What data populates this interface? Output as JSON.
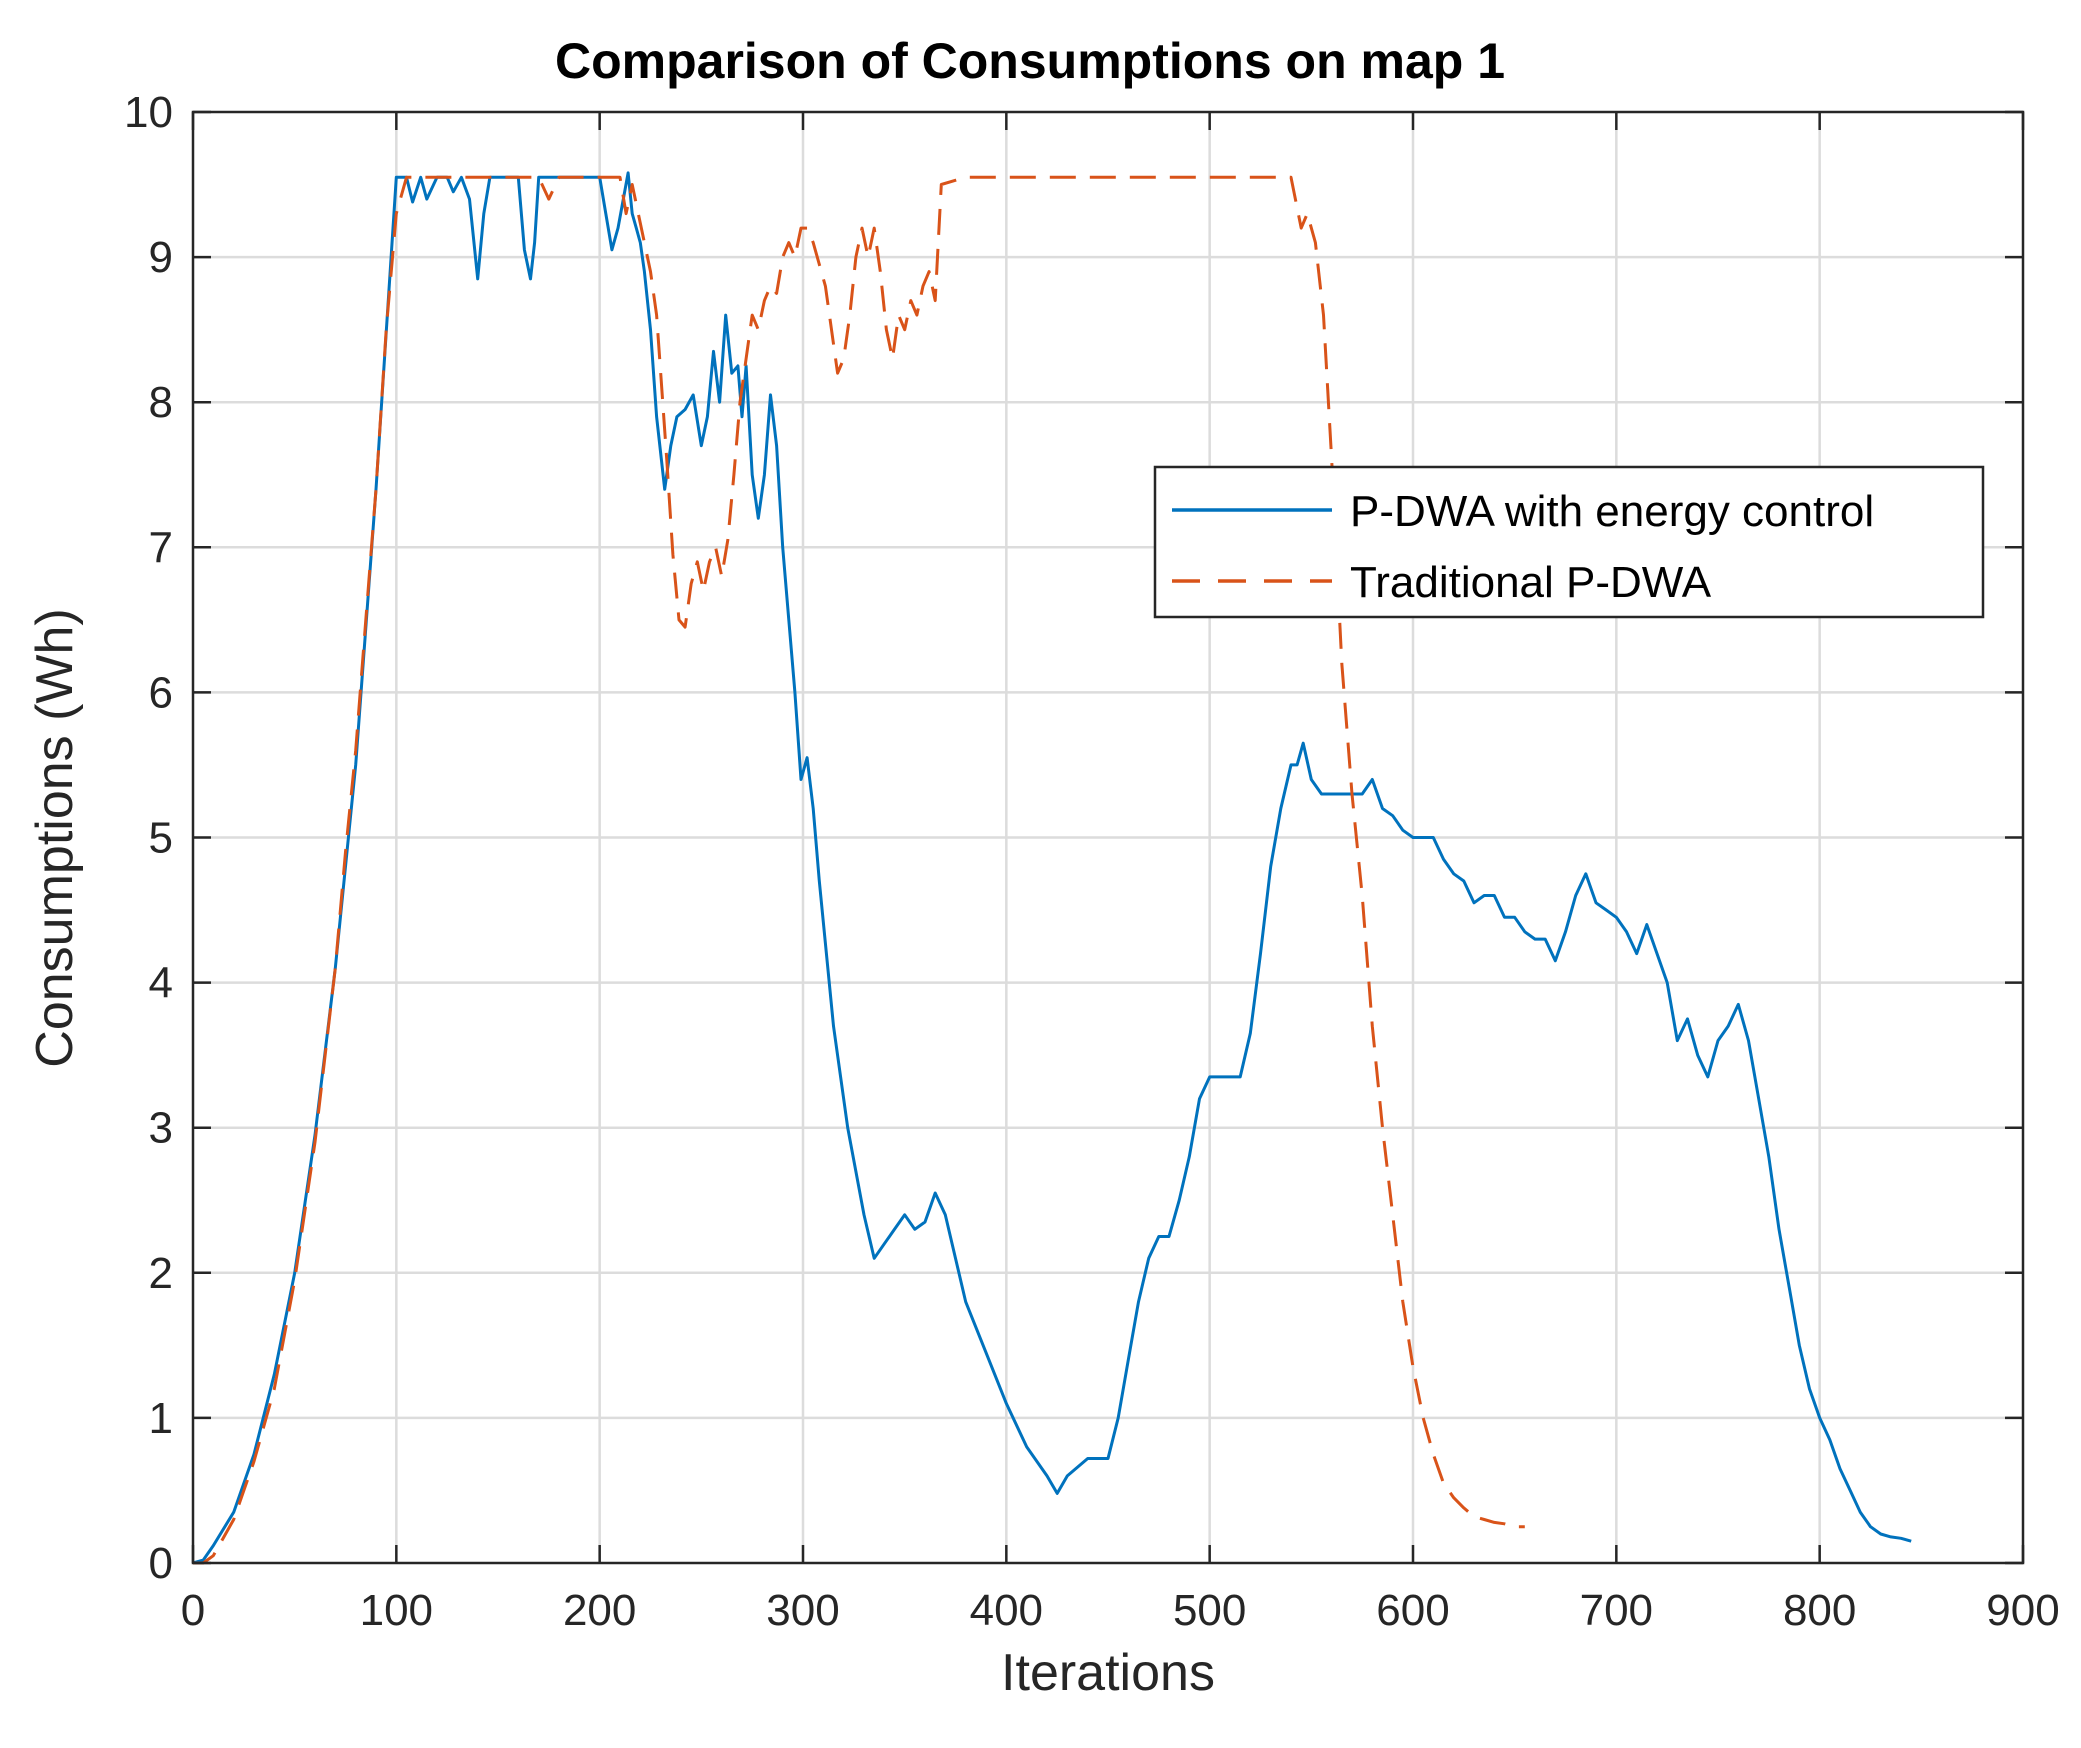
{
  "chart_data": {
    "type": "line",
    "title": "Comparison of Consumptions on map 1",
    "xlabel": "Iterations",
    "ylabel": "Consumptions (Wh)",
    "xlim": [
      0,
      900
    ],
    "ylim": [
      0,
      10
    ],
    "xticks": [
      "0",
      "100",
      "200",
      "300",
      "400",
      "500",
      "600",
      "700",
      "800",
      "900"
    ],
    "yticks": [
      "0",
      "1",
      "2",
      "3",
      "4",
      "5",
      "6",
      "7",
      "8",
      "9",
      "10"
    ],
    "grid": true,
    "legend_position": "center-right",
    "colors": {
      "series1": "#0072BD",
      "series2": "#D95319",
      "axis": "#262626",
      "grid": "#dcdcdc"
    },
    "series": [
      {
        "name": "P-DWA with energy control",
        "style": "solid",
        "x": [
          0,
          5,
          10,
          20,
          30,
          40,
          50,
          60,
          70,
          80,
          90,
          100,
          103,
          105,
          108,
          112,
          115,
          120,
          125,
          128,
          132,
          136,
          140,
          143,
          146,
          150,
          155,
          160,
          163,
          166,
          168,
          170,
          175,
          180,
          185,
          190,
          195,
          200,
          203,
          206,
          209,
          211,
          214,
          216,
          218,
          220,
          222,
          225,
          228,
          232,
          235,
          238,
          242,
          246,
          250,
          253,
          256,
          259,
          262,
          265,
          268,
          270,
          272,
          275,
          278,
          281,
          284,
          287,
          290,
          293,
          296,
          299,
          302,
          305,
          308,
          315,
          322,
          330,
          335,
          340,
          345,
          350,
          355,
          360,
          365,
          370,
          375,
          380,
          390,
          400,
          410,
          420,
          425,
          430,
          440,
          445,
          450,
          455,
          460,
          465,
          470,
          475,
          480,
          485,
          490,
          495,
          500,
          505,
          510,
          515,
          520,
          525,
          530,
          535,
          540,
          543,
          546,
          550,
          555,
          560,
          565,
          570,
          575,
          580,
          585,
          590,
          595,
          600,
          605,
          610,
          615,
          620,
          625,
          630,
          635,
          640,
          645,
          650,
          655,
          660,
          665,
          670,
          675,
          680,
          685,
          690,
          695,
          700,
          705,
          710,
          715,
          720,
          725,
          730,
          735,
          740,
          745,
          750,
          755,
          760,
          765,
          770,
          775,
          780,
          785,
          790,
          795,
          800,
          805,
          810,
          815,
          820,
          825,
          830,
          835,
          840,
          845
        ],
        "values": [
          0,
          0.02,
          0.12,
          0.35,
          0.75,
          1.3,
          2.0,
          2.95,
          4.1,
          5.5,
          7.4,
          9.55,
          9.55,
          9.55,
          9.38,
          9.55,
          9.4,
          9.55,
          9.55,
          9.45,
          9.55,
          9.4,
          8.85,
          9.3,
          9.55,
          9.55,
          9.55,
          9.55,
          9.05,
          8.85,
          9.1,
          9.55,
          9.55,
          9.55,
          9.55,
          9.55,
          9.55,
          9.55,
          9.3,
          9.05,
          9.2,
          9.35,
          9.58,
          9.3,
          9.2,
          9.1,
          8.9,
          8.5,
          7.9,
          7.4,
          7.7,
          7.9,
          7.95,
          8.05,
          7.7,
          7.9,
          8.35,
          8.0,
          8.6,
          8.2,
          8.25,
          7.9,
          8.25,
          7.5,
          7.2,
          7.5,
          8.05,
          7.7,
          7.0,
          6.5,
          6.0,
          5.4,
          5.55,
          5.2,
          4.7,
          3.7,
          3.0,
          2.4,
          2.1,
          2.2,
          2.3,
          2.4,
          2.3,
          2.35,
          2.55,
          2.4,
          2.1,
          1.8,
          1.45,
          1.1,
          0.8,
          0.6,
          0.48,
          0.6,
          0.72,
          0.72,
          0.72,
          1.0,
          1.4,
          1.8,
          2.1,
          2.25,
          2.25,
          2.5,
          2.8,
          3.2,
          3.35,
          3.35,
          3.35,
          3.35,
          3.65,
          4.2,
          4.8,
          5.2,
          5.5,
          5.5,
          5.65,
          5.4,
          5.3,
          5.3,
          5.3,
          5.3,
          5.3,
          5.4,
          5.2,
          5.15,
          5.05,
          5.0,
          5.0,
          5.0,
          4.85,
          4.75,
          4.7,
          4.55,
          4.6,
          4.6,
          4.45,
          4.45,
          4.35,
          4.3,
          4.3,
          4.15,
          4.35,
          4.6,
          4.75,
          4.55,
          4.5,
          4.45,
          4.35,
          4.2,
          4.4,
          4.2,
          4.0,
          3.6,
          3.75,
          3.5,
          3.35,
          3.6,
          3.7,
          3.85,
          3.6,
          3.2,
          2.8,
          2.3,
          1.9,
          1.5,
          1.2,
          1.0,
          0.85,
          0.65,
          0.5,
          0.35,
          0.25,
          0.2,
          0.18,
          0.17,
          0.15
        ]
      },
      {
        "name": "Traditional P-DWA",
        "style": "dashed",
        "x": [
          0,
          5,
          10,
          20,
          30,
          40,
          50,
          60,
          70,
          75,
          80,
          85,
          90,
          95,
          100,
          105,
          110,
          115,
          120,
          130,
          140,
          150,
          160,
          170,
          175,
          180,
          190,
          200,
          205,
          210,
          213,
          216,
          219,
          222,
          225,
          228,
          230,
          233,
          236,
          239,
          242,
          245,
          248,
          251,
          254,
          257,
          260,
          263,
          266,
          269,
          272,
          275,
          278,
          281,
          284,
          287,
          290,
          293,
          296,
          299,
          302,
          305,
          308,
          311,
          314,
          317,
          320,
          323,
          326,
          329,
          332,
          335,
          338,
          341,
          344,
          347,
          350,
          353,
          356,
          359,
          362,
          365,
          368,
          380,
          400,
          450,
          495,
          500,
          520,
          540,
          545,
          548,
          552,
          556,
          560,
          565,
          570,
          575,
          580,
          585,
          590,
          595,
          600,
          605,
          610,
          615,
          620,
          625,
          630,
          635,
          640,
          645,
          650,
          655
        ],
        "values": [
          0,
          0,
          0.05,
          0.3,
          0.7,
          1.2,
          1.95,
          2.9,
          4.1,
          4.9,
          5.6,
          6.5,
          7.4,
          8.5,
          9.3,
          9.55,
          9.55,
          9.55,
          9.55,
          9.55,
          9.55,
          9.55,
          9.55,
          9.55,
          9.4,
          9.55,
          9.55,
          9.55,
          9.55,
          9.55,
          9.3,
          9.5,
          9.3,
          9.1,
          8.9,
          8.6,
          8.2,
          7.6,
          6.95,
          6.5,
          6.45,
          6.75,
          6.9,
          6.7,
          6.9,
          7.0,
          6.8,
          7.05,
          7.5,
          8.0,
          8.3,
          8.6,
          8.5,
          8.7,
          8.8,
          8.75,
          9.0,
          9.1,
          9.0,
          9.2,
          9.2,
          9.1,
          8.95,
          8.8,
          8.5,
          8.2,
          8.3,
          8.6,
          9.0,
          9.2,
          9.0,
          9.2,
          8.9,
          8.5,
          8.3,
          8.6,
          8.5,
          8.7,
          8.6,
          8.8,
          8.9,
          8.7,
          9.5,
          9.55,
          9.55,
          9.55,
          9.55,
          9.55,
          9.55,
          9.55,
          9.2,
          9.3,
          9.1,
          8.6,
          7.6,
          6.2,
          5.3,
          4.6,
          3.7,
          3.0,
          2.4,
          1.8,
          1.35,
          1.0,
          0.75,
          0.55,
          0.45,
          0.38,
          0.32,
          0.3,
          0.28,
          0.27,
          0.25,
          0.25
        ]
      }
    ]
  }
}
